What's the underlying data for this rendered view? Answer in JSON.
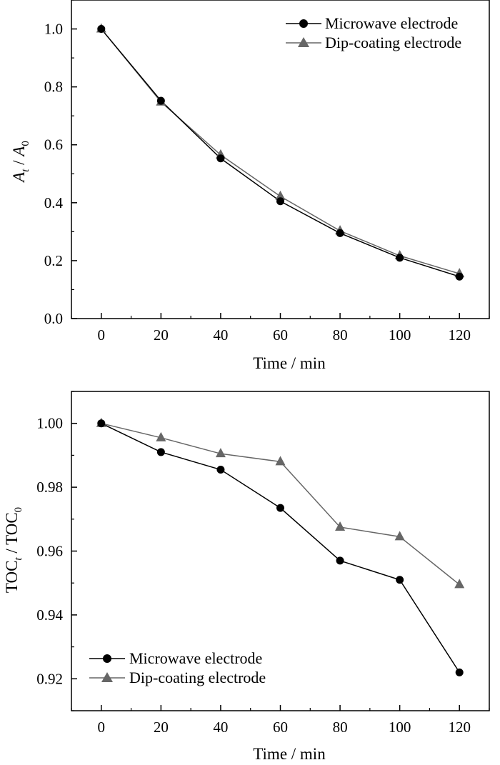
{
  "chart_data": [
    {
      "type": "line",
      "title": "",
      "xlabel": "Time / min",
      "ylabel_main": "A",
      "ylabel_sub_t": "t",
      "ylabel_sep": " / ",
      "ylabel_main2": "A",
      "ylabel_sub_0": "0",
      "x": [
        0,
        20,
        40,
        60,
        80,
        100,
        120
      ],
      "xlim": [
        -10,
        130
      ],
      "ylim": [
        0,
        1.1
      ],
      "xticks": [
        "0",
        "20",
        "40",
        "60",
        "80",
        "100",
        "120"
      ],
      "yticks": [
        "0.0",
        "0.2",
        "0.4",
        "0.6",
        "0.8",
        "1.0"
      ],
      "legend_position": "top-right",
      "grid": false,
      "series": [
        {
          "name": "Microwave electrode",
          "marker": "circle",
          "color": "#000000",
          "values": [
            1.0,
            0.752,
            0.553,
            0.405,
            0.295,
            0.21,
            0.145
          ]
        },
        {
          "name": "Dip-coating electrode",
          "marker": "triangle",
          "color": "#666666",
          "values": [
            1.0,
            0.748,
            0.565,
            0.422,
            0.303,
            0.217,
            0.155
          ]
        }
      ]
    },
    {
      "type": "line",
      "title": "",
      "xlabel": "Time / min",
      "ylabel_main": "TOC",
      "ylabel_sub_t": "t",
      "ylabel_sep": " / ",
      "ylabel_main2": "TOC",
      "ylabel_sub_0": "0",
      "x": [
        0,
        20,
        40,
        60,
        80,
        100,
        120
      ],
      "xlim": [
        -10,
        130
      ],
      "ylim": [
        0.91,
        1.01
      ],
      "xticks": [
        "0",
        "20",
        "40",
        "60",
        "80",
        "100",
        "120"
      ],
      "yticks": [
        "0.92",
        "0.94",
        "0.96",
        "0.98",
        "1.00"
      ],
      "legend_position": "bottom-left",
      "grid": false,
      "series": [
        {
          "name": "Microwave electrode",
          "marker": "circle",
          "color": "#000000",
          "values": [
            1.0,
            0.991,
            0.9855,
            0.9735,
            0.957,
            0.951,
            0.922
          ]
        },
        {
          "name": "Dip-coating electrode",
          "marker": "triangle",
          "color": "#666666",
          "values": [
            1.0,
            0.9955,
            0.9905,
            0.988,
            0.9675,
            0.9645,
            0.9495
          ]
        }
      ]
    }
  ]
}
